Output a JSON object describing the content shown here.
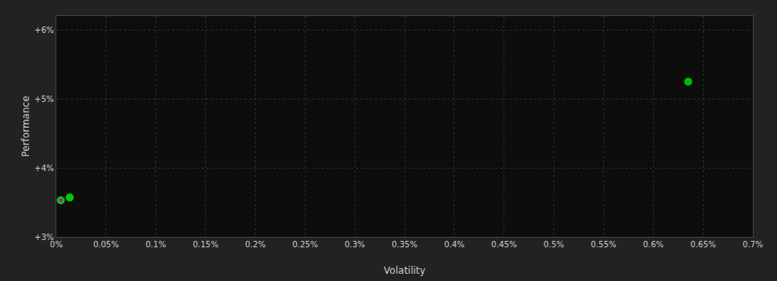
{
  "chart_data": {
    "type": "scatter",
    "x": [
      4.5e-05,
      0.000135,
      0.00635,
      4.5e-05
    ],
    "values": [
      0.0353,
      0.0357,
      0.0525,
      0.0353
    ],
    "colors": [
      "#00cc00",
      "#00cc00",
      "#00bb00",
      "#cc00cc"
    ],
    "marker": "circle",
    "x_label": "Volatility",
    "y_label": "Performance",
    "xlim": [
      0.0,
      0.007
    ],
    "ylim": [
      0.03,
      0.062
    ],
    "xticks": [
      {
        "value": 0.0,
        "label": "0%"
      },
      {
        "value": 0.0005,
        "label": "0.05%"
      },
      {
        "value": 0.001,
        "label": "0.1%"
      },
      {
        "value": 0.0015,
        "label": "0.15%"
      },
      {
        "value": 0.002,
        "label": "0.2%"
      },
      {
        "value": 0.0025,
        "label": "0.25%"
      },
      {
        "value": 0.003,
        "label": "0.3%"
      },
      {
        "value": 0.0035,
        "label": "0.35%"
      },
      {
        "value": 0.004,
        "label": "0.4%"
      },
      {
        "value": 0.0045,
        "label": "0.45%"
      },
      {
        "value": 0.005,
        "label": "0.5%"
      },
      {
        "value": 0.0055,
        "label": "0.55%"
      },
      {
        "value": 0.006,
        "label": "0.6%"
      },
      {
        "value": 0.0065,
        "label": "0.65%"
      },
      {
        "value": 0.007,
        "label": "0.7%"
      }
    ],
    "yticks": [
      {
        "value": 0.03,
        "label": "+3%"
      },
      {
        "value": 0.04,
        "label": "+4%"
      },
      {
        "value": 0.05,
        "label": "+5%"
      },
      {
        "value": 0.06,
        "label": "+6%"
      }
    ],
    "grid": true
  }
}
